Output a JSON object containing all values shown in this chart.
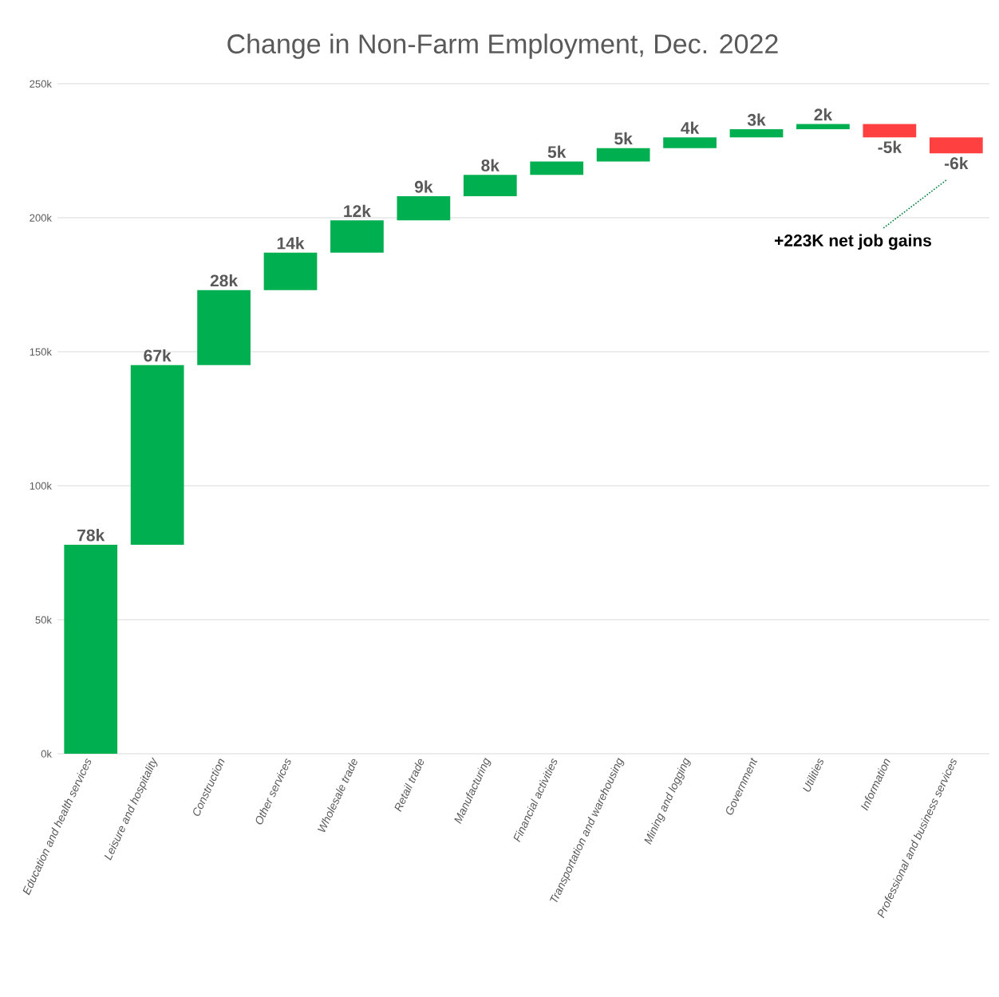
{
  "chart_data": {
    "type": "bar",
    "title": "Change in Non-Farm Employment, Dec. 2022",
    "categories": [
      "Education and health services",
      "Leisure and hospitality",
      "Construction",
      "Other services",
      "Wholesale trade",
      "Retail trade",
      "Manufacturing",
      "Financial activities",
      "Transportation and warehousing",
      "Mining and logging",
      "Government",
      "Utilities",
      "Information",
      "Professional and business services"
    ],
    "values": [
      78,
      67,
      28,
      14,
      12,
      9,
      8,
      5,
      5,
      4,
      3,
      2,
      -5,
      -6
    ],
    "base": [
      0,
      78,
      145,
      173,
      187,
      199,
      208,
      216,
      221,
      226,
      230,
      233,
      235,
      230
    ],
    "colors": [
      "#00b050",
      "#00b050",
      "#00b050",
      "#00b050",
      "#00b050",
      "#00b050",
      "#00b050",
      "#00b050",
      "#00b050",
      "#00b050",
      "#00b050",
      "#00b050",
      "#ff4040",
      "#ff4040"
    ],
    "value_labels": [
      "78k",
      "67k",
      "28k",
      "14k",
      "12k",
      "9k",
      "8k",
      "5k",
      "5k",
      "4k",
      "3k",
      "2k",
      "-5k",
      "-6k"
    ],
    "ylim": [
      0,
      250
    ],
    "yticks": [
      {
        "value": 0,
        "label": "0k"
      },
      {
        "value": 50,
        "label": "50k"
      },
      {
        "value": 100,
        "label": "100k"
      },
      {
        "value": 150,
        "label": "150k"
      },
      {
        "value": 200,
        "label": "200k"
      },
      {
        "value": 250,
        "label": "250k"
      }
    ],
    "grid": "y",
    "annotations": [
      "+223K net job gains"
    ]
  }
}
